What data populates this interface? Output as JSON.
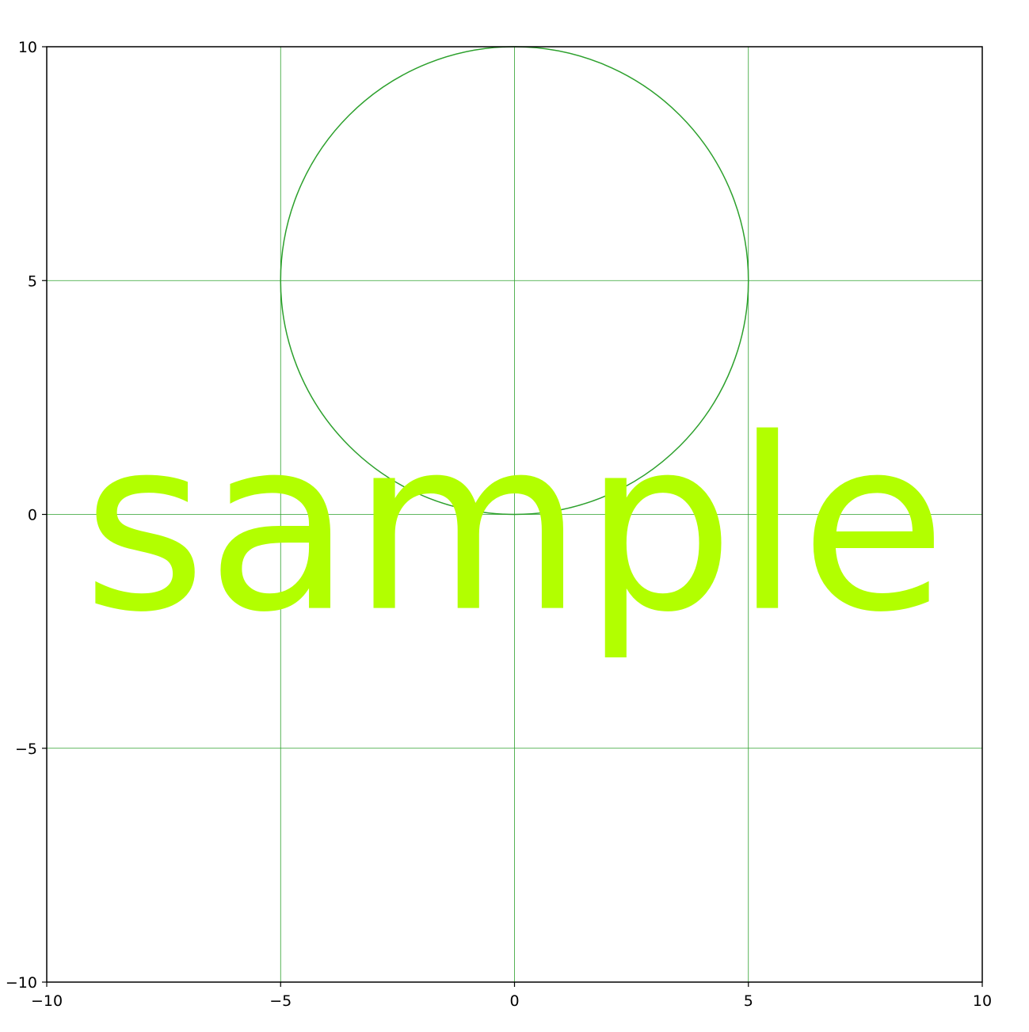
{
  "chart_data": {
    "type": "scatter",
    "title": "",
    "xlabel": "",
    "ylabel": "",
    "xlim": [
      -10,
      10
    ],
    "ylim": [
      -10,
      10
    ],
    "grid": true,
    "grid_color": "#2ca02c",
    "x_ticks": [
      -10,
      -5,
      0,
      5,
      10
    ],
    "y_ticks": [
      -10,
      -5,
      0,
      5,
      10
    ],
    "x_tick_labels": [
      "−10",
      "−5",
      "0",
      "5",
      "10"
    ],
    "y_tick_labels": [
      "−10",
      "−5",
      "0",
      "5",
      "10"
    ],
    "shapes": [
      {
        "type": "circle",
        "center": [
          0,
          5
        ],
        "radius": 5,
        "stroke": "#2ca02c",
        "fill": "none"
      }
    ],
    "annotation": {
      "text": "sample",
      "x": 0,
      "y": -2,
      "color": "#b2ff00"
    }
  }
}
